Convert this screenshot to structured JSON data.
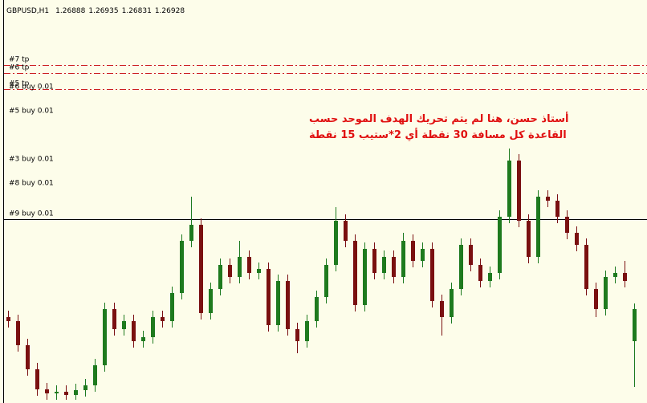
{
  "chart_data": {
    "type": "candlestick",
    "symbol": "GBPUSD,H1",
    "quote": [
      1.26888,
      1.26935,
      1.26831,
      1.26928
    ],
    "annotation": [
      "أستاذ حسن، هنا لم يتم تحريك الهدف الموحد حسب",
      "القاعدة كل مسافة 30 نقطة أي 2*ستيب 15 نقطة"
    ],
    "annotation_color": "#e01010",
    "up_color": "#1e7a1e",
    "down_color": "#7a1010",
    "ylim": [
      1.26811,
      1.27313
    ],
    "levels": [
      {
        "label": "#7 tp",
        "value": 1.27232,
        "line": "dashdot",
        "color": "#cc2020"
      },
      {
        "label": "#6 tp",
        "value": 1.27222,
        "line": "dashdot",
        "color": "#cc2020"
      },
      {
        "label": "#5 tp",
        "value": 1.27202,
        "line": "dashdot",
        "color": "#cc2020"
      },
      {
        "label": "#6 buy 0.01",
        "value": 1.27198,
        "line": "hidden",
        "color": "#000000"
      },
      {
        "label": "#5 buy 0.01",
        "value": 1.27168,
        "line": "hidden",
        "color": "#000000"
      },
      {
        "label": "#3 buy 0.01",
        "value": 1.27108,
        "line": "hidden",
        "color": "#000000"
      },
      {
        "label": "#8 buy 0.01",
        "value": 1.27078,
        "line": "hidden",
        "color": "#000000"
      },
      {
        "label": "#9 buy 0.01",
        "value": 1.2704,
        "line": "solid",
        "color": "#000000"
      }
    ],
    "open": [
      1.26918,
      1.26913,
      1.26883,
      1.26853,
      1.26828,
      1.26823,
      1.26825,
      1.26821,
      1.26827,
      1.26833,
      1.26858,
      1.26928,
      1.26903,
      1.26913,
      1.26888,
      1.26893,
      1.26918,
      1.26913,
      1.26948,
      1.27013,
      1.27033,
      1.26923,
      1.26953,
      1.26983,
      1.26968,
      1.26993,
      1.26973,
      1.26978,
      1.26908,
      1.26963,
      1.26903,
      1.26888,
      1.26913,
      1.26943,
      1.26983,
      1.27038,
      1.27013,
      1.26933,
      1.27003,
      1.26973,
      1.26993,
      1.26968,
      1.27013,
      1.26988,
      1.27003,
      1.26938,
      1.26918,
      1.26953,
      1.27008,
      1.26983,
      1.26963,
      1.26973,
      1.27043,
      1.27113,
      1.27038,
      1.26993,
      1.27068,
      1.27063,
      1.27043,
      1.27023,
      1.27008,
      1.26953,
      1.26928,
      1.26968,
      1.26973,
      1.26888
    ],
    "high": [
      1.26926,
      1.26921,
      1.26891,
      1.26861,
      1.26836,
      1.26833,
      1.26833,
      1.26835,
      1.26841,
      1.26866,
      1.26936,
      1.26936,
      1.26921,
      1.26921,
      1.26901,
      1.26926,
      1.26926,
      1.26956,
      1.27021,
      1.27068,
      1.27041,
      1.26961,
      1.26991,
      1.26991,
      1.27013,
      1.27001,
      1.26986,
      1.26986,
      1.26971,
      1.26971,
      1.26911,
      1.26921,
      1.26951,
      1.26991,
      1.27055,
      1.27046,
      1.27021,
      1.27011,
      1.27011,
      1.27001,
      1.27001,
      1.27023,
      1.27021,
      1.27011,
      1.27011,
      1.26946,
      1.26961,
      1.27016,
      1.27016,
      1.26991,
      1.26981,
      1.27051,
      1.27128,
      1.27121,
      1.27046,
      1.27076,
      1.27076,
      1.27071,
      1.27051,
      1.27031,
      1.27016,
      1.26961,
      1.26976,
      1.26981,
      1.26988,
      1.26935
    ],
    "low": [
      1.26905,
      1.26875,
      1.26845,
      1.2682,
      1.26815,
      1.26815,
      1.26815,
      1.26815,
      1.26819,
      1.26825,
      1.2685,
      1.26895,
      1.26895,
      1.2688,
      1.2688,
      1.26885,
      1.26905,
      1.26905,
      1.2694,
      1.27005,
      1.26915,
      1.26915,
      1.26945,
      1.2696,
      1.2696,
      1.26965,
      1.26965,
      1.269,
      1.269,
      1.26895,
      1.26873,
      1.2688,
      1.26905,
      1.26935,
      1.26975,
      1.27005,
      1.26925,
      1.26925,
      1.26965,
      1.26965,
      1.2696,
      1.2696,
      1.2698,
      1.2698,
      1.2693,
      1.26895,
      1.2691,
      1.26945,
      1.26975,
      1.26955,
      1.26955,
      1.26965,
      1.27035,
      1.2703,
      1.26985,
      1.26985,
      1.27055,
      1.27035,
      1.27015,
      1.27,
      1.26945,
      1.26918,
      1.2692,
      1.2696,
      1.26955,
      1.26831
    ],
    "close": [
      1.26913,
      1.26883,
      1.26853,
      1.26828,
      1.26823,
      1.26825,
      1.26821,
      1.26827,
      1.26833,
      1.26858,
      1.26928,
      1.26903,
      1.26913,
      1.26888,
      1.26893,
      1.26918,
      1.26913,
      1.26948,
      1.27013,
      1.27033,
      1.26923,
      1.26953,
      1.26983,
      1.26968,
      1.26993,
      1.26973,
      1.26978,
      1.26908,
      1.26963,
      1.26903,
      1.26888,
      1.26913,
      1.26943,
      1.26983,
      1.27038,
      1.27013,
      1.26933,
      1.27003,
      1.26973,
      1.26993,
      1.26968,
      1.27013,
      1.26988,
      1.27003,
      1.26938,
      1.26918,
      1.26953,
      1.27008,
      1.26983,
      1.26963,
      1.26973,
      1.27043,
      1.27113,
      1.27038,
      1.26993,
      1.27068,
      1.27063,
      1.27043,
      1.27023,
      1.27008,
      1.26953,
      1.26928,
      1.26968,
      1.26973,
      1.26963,
      1.26928
    ]
  }
}
